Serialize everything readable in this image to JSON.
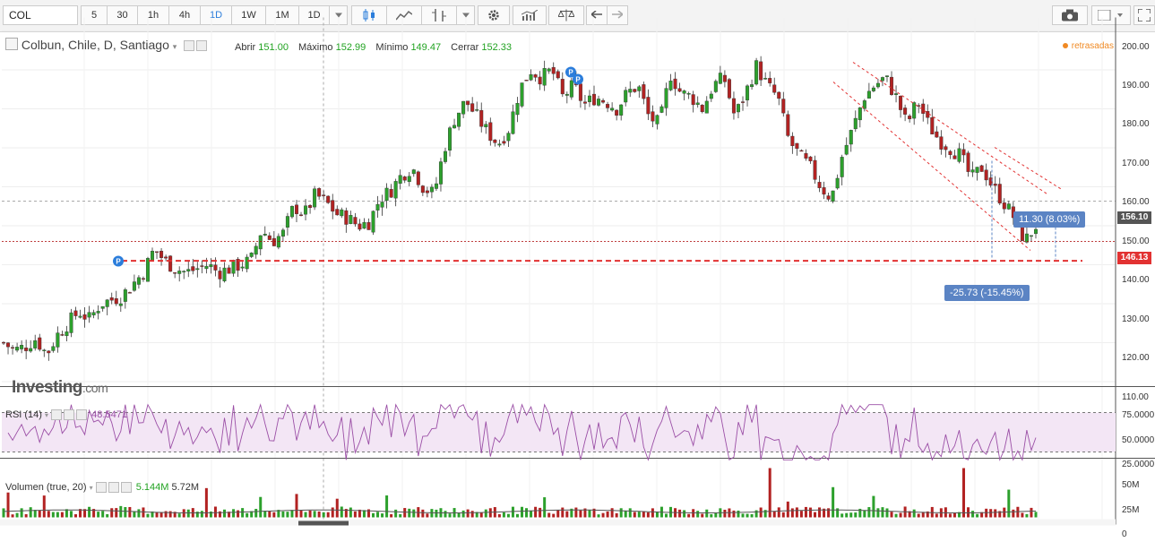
{
  "toolbar": {
    "symbol": "COL",
    "intervals": [
      "5",
      "30",
      "1h",
      "4h",
      "1D",
      "1W",
      "1M"
    ],
    "active_interval": "1D",
    "range_label": "1D"
  },
  "legend": {
    "title": "Colbun, Chile, D, Santiago",
    "open_label": "Abrir",
    "open": "151.00",
    "high_label": "Máximo",
    "high": "152.99",
    "low_label": "Mínimo",
    "low": "149.47",
    "close_label": "Cerrar",
    "close": "152.33",
    "delayed": "retrasadas"
  },
  "price_axis": [
    "200.00",
    "190.00",
    "180.00",
    "170.00",
    "160.00",
    "150.00",
    "140.00",
    "130.00",
    "120.00",
    "110.00"
  ],
  "price_tags": {
    "upper": "156.10",
    "current": "146.13"
  },
  "measures": {
    "up": "11.30 (8.03%)",
    "down": "-25.73 (-15.45%)"
  },
  "watermark": {
    "brand": "Investing",
    "suffix": ".com"
  },
  "rsi": {
    "label": "RSI (14)",
    "value": "48.5471",
    "axis": [
      "75.0000",
      "50.0000",
      "25.0000"
    ]
  },
  "volume": {
    "label": "Volumen (true, 20)",
    "value1": "5.144M",
    "value2": "5.72M",
    "axis": [
      "50M",
      "25M",
      "0"
    ]
  },
  "colors": {
    "up": "#2ca02c",
    "down": "#b22222",
    "accent": "#2b7ddb",
    "rsi": "#9b4fa6",
    "current": "#e23232"
  },
  "chart_data": {
    "type": "candlestick",
    "ylim": [
      110,
      200
    ],
    "close_path": [
      120,
      118,
      119,
      121,
      117,
      122,
      125,
      128,
      126,
      130,
      131,
      132,
      135,
      138,
      144,
      141,
      139,
      138,
      139,
      140,
      138,
      139,
      140,
      141,
      149,
      146,
      148,
      155,
      153,
      158,
      156,
      153,
      152,
      150,
      151,
      157,
      159,
      163,
      165,
      160,
      158,
      170,
      178,
      182,
      178,
      174,
      171,
      175,
      185,
      190,
      188,
      190,
      183,
      186,
      181,
      183,
      182,
      180,
      184,
      186,
      178,
      176,
      189,
      184,
      183,
      180,
      186,
      188,
      178,
      184,
      191,
      186,
      183,
      172,
      168,
      165,
      160,
      157,
      168,
      175,
      183,
      186,
      188,
      183,
      176,
      182,
      176,
      172,
      170,
      168,
      162,
      165,
      160,
      156,
      152,
      146,
      150
    ]
  }
}
